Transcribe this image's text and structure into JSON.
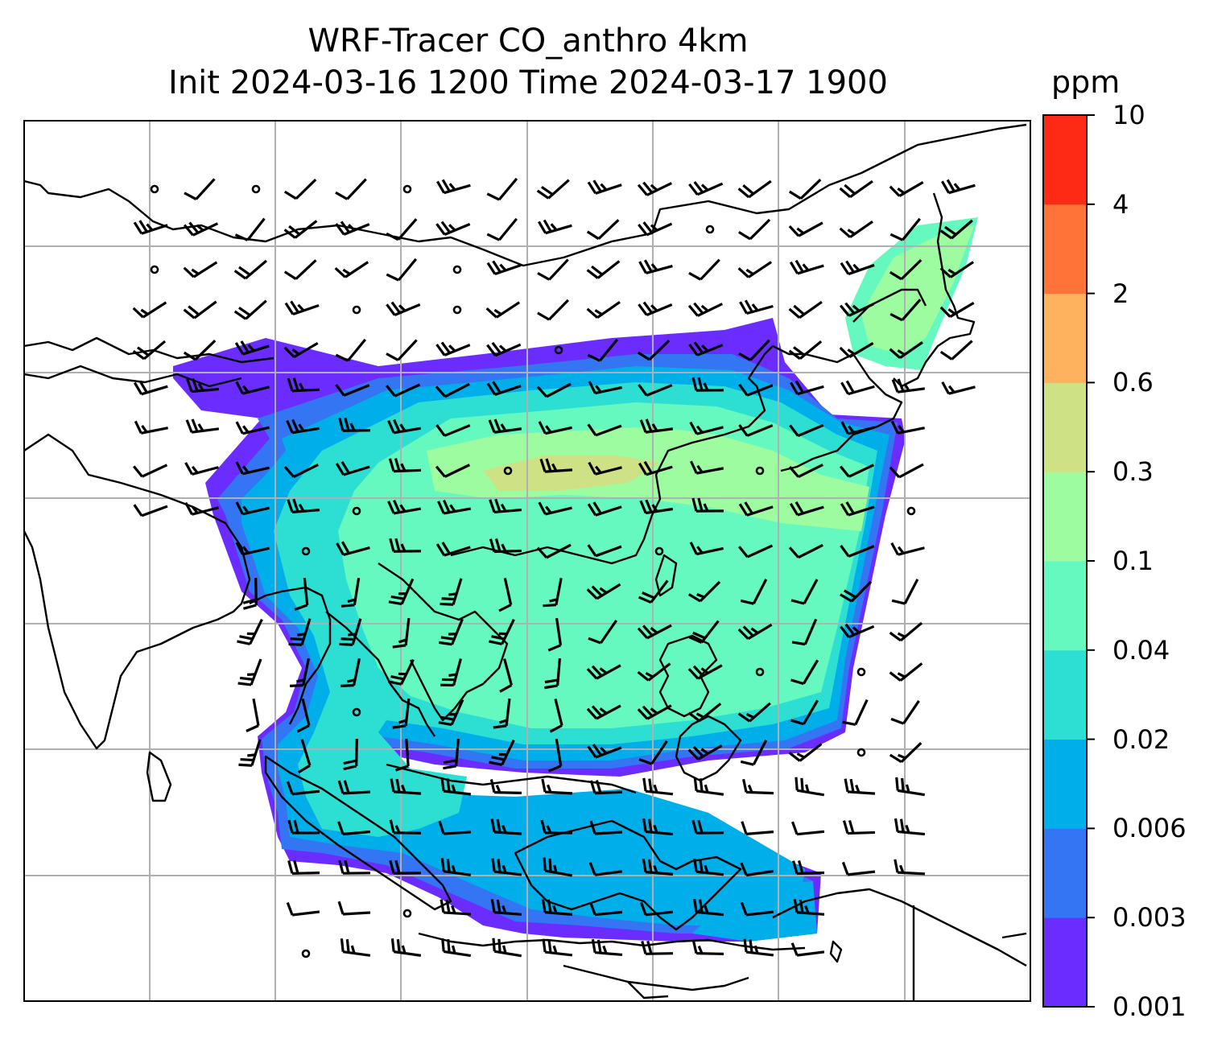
{
  "title": {
    "line1": "WRF-Tracer CO_anthro 4km",
    "line2": "Init 2024-03-16 1200 Time 2024-03-17 1900"
  },
  "colorbar": {
    "unit": "ppm",
    "levels": [
      "0.001",
      "0.003",
      "0.006",
      "0.02",
      "0.04",
      "0.1",
      "0.3",
      "0.6",
      "2",
      "4",
      "10"
    ],
    "colors": [
      "#6a2cff",
      "#3375f2",
      "#00aee9",
      "#2ddfd2",
      "#65f9c0",
      "#9dfba0",
      "#cfe185",
      "#ffb25d",
      "#ff7238",
      "#ff2a16"
    ]
  },
  "map": {
    "gridlines": true,
    "features": [
      "coastlines",
      "country-borders",
      "wind-barbs",
      "co-tracer-concentration"
    ]
  }
}
